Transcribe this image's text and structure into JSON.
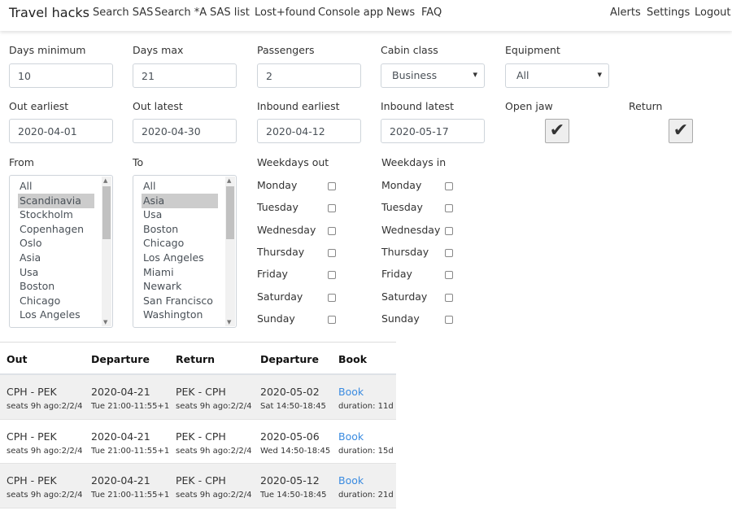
{
  "nav": {
    "brand": "Travel hacks",
    "links": [
      "Search SAS",
      "Search *A",
      "SAS list",
      "Lost+found",
      "Console app",
      "News",
      "FAQ"
    ],
    "right": [
      "Alerts",
      "Settings",
      "Logout"
    ]
  },
  "form": {
    "days_min": {
      "label": "Days minimum",
      "value": "10"
    },
    "days_max": {
      "label": "Days max",
      "value": "21"
    },
    "passengers": {
      "label": "Passengers",
      "value": "2"
    },
    "cabin": {
      "label": "Cabin class",
      "value": "Business"
    },
    "equipment": {
      "label": "Equipment",
      "value": "All"
    },
    "out_earliest": {
      "label": "Out earliest",
      "value": "2020-04-01"
    },
    "out_latest": {
      "label": "Out latest",
      "value": "2020-04-30"
    },
    "in_earliest": {
      "label": "Inbound earliest",
      "value": "2020-04-12"
    },
    "in_latest": {
      "label": "Inbound latest",
      "value": "2020-05-17"
    },
    "open_jaw": {
      "label": "Open jaw",
      "checked": true
    },
    "return": {
      "label": "Return",
      "checked": true
    },
    "from": {
      "label": "From",
      "options": [
        "All",
        "Scandinavia",
        "Stockholm",
        "Copenhagen",
        "Oslo",
        "Asia",
        "Usa",
        "Boston",
        "Chicago",
        "Los Angeles"
      ],
      "selected": "Scandinavia"
    },
    "to": {
      "label": "To",
      "options": [
        "All",
        "Asia",
        "Usa",
        "Boston",
        "Chicago",
        "Los Angeles",
        "Miami",
        "Newark",
        "San Francisco",
        "Washington"
      ],
      "selected": "Asia"
    },
    "weekdays_out": {
      "label": "Weekdays out"
    },
    "weekdays_in": {
      "label": "Weekdays in"
    },
    "weekdays": [
      "Monday",
      "Tuesday",
      "Wednesday",
      "Thursday",
      "Friday",
      "Saturday",
      "Sunday"
    ]
  },
  "table": {
    "headers": [
      "Out",
      "Departure",
      "Return",
      "Departure",
      "Book"
    ],
    "rows": [
      {
        "out": "CPH - PEK",
        "out_seats": "seats 9h ago:2/2/4",
        "dep": "2020-04-21",
        "dep_time": "Tue 21:00-11:55+1",
        "ret": "PEK - CPH",
        "ret_seats": "seats 9h ago:2/2/4",
        "ret_dep": "2020-05-02",
        "ret_time": "Sat 14:50-18:45",
        "book": "Book",
        "duration": "duration: 11d"
      },
      {
        "out": "CPH - PEK",
        "out_seats": "seats 9h ago:2/2/4",
        "dep": "2020-04-21",
        "dep_time": "Tue 21:00-11:55+1",
        "ret": "PEK - CPH",
        "ret_seats": "seats 9h ago:2/2/4",
        "ret_dep": "2020-05-06",
        "ret_time": "Wed 14:50-18:45",
        "book": "Book",
        "duration": "duration: 15d"
      },
      {
        "out": "CPH - PEK",
        "out_seats": "seats 9h ago:2/2/4",
        "dep": "2020-04-21",
        "dep_time": "Tue 21:00-11:55+1",
        "ret": "PEK - CPH",
        "ret_seats": "seats 9h ago:2/2/4",
        "ret_dep": "2020-05-12",
        "ret_time": "Tue 14:50-18:45",
        "book": "Book",
        "duration": "duration: 21d"
      }
    ]
  },
  "colors": {
    "link": "#3a8be0",
    "selected_option": "#cccccc",
    "striped_row": "#f0f0f0"
  }
}
